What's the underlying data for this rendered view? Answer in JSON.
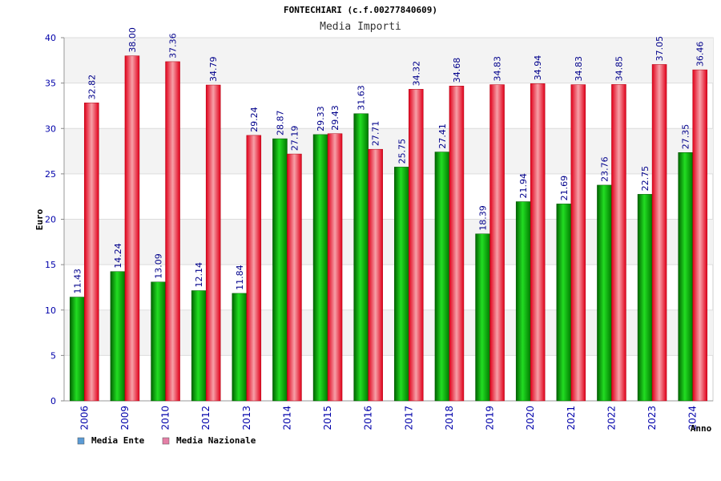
{
  "chart_data": {
    "type": "bar",
    "title": "FONTECHIARI (c.f.00277840609)",
    "subtitle": "Media Importi",
    "xlabel": "Anno",
    "ylabel": "Euro",
    "ylim": [
      0,
      40
    ],
    "yticks": [
      0,
      5,
      10,
      15,
      20,
      25,
      30,
      35,
      40
    ],
    "categories": [
      "2006",
      "2009",
      "2010",
      "2012",
      "2013",
      "2014",
      "2015",
      "2016",
      "2017",
      "2018",
      "2019",
      "2020",
      "2021",
      "2022",
      "2023",
      "2024"
    ],
    "series": [
      {
        "name": "Media Ente",
        "color": "#00aa00",
        "values": [
          11.43,
          14.24,
          13.09,
          12.14,
          11.84,
          28.87,
          29.33,
          31.63,
          25.75,
          27.41,
          18.39,
          21.94,
          21.69,
          23.76,
          22.75,
          27.35
        ],
        "labels": [
          "11.43",
          "14.24",
          "13.09",
          "12.14",
          "11.84",
          "28.87",
          "29.33",
          "31.63",
          "25.75",
          "27.41",
          "18.39",
          "21.94",
          "21.69",
          "23.76",
          "22.75",
          "27.35"
        ]
      },
      {
        "name": "Media Nazionale",
        "color": "#ee1122",
        "values": [
          32.82,
          38.0,
          37.36,
          34.79,
          29.24,
          27.19,
          29.43,
          27.71,
          34.32,
          34.68,
          34.83,
          34.94,
          34.83,
          34.85,
          37.05,
          36.46
        ],
        "labels": [
          "32.82",
          "38.00",
          "37.36",
          "34.79",
          "29.24",
          "27.19",
          "29.43",
          "27.71",
          "34.32",
          "34.68",
          "34.83",
          "34.94",
          "34.83",
          "34.85",
          "37.05",
          "36.46"
        ]
      }
    ],
    "legend": {
      "position": "bottom-left",
      "items": [
        {
          "label": "Media Ente",
          "color": "#5b9bd5"
        },
        {
          "label": "Media Nazionale",
          "color": "#e57fa6"
        }
      ]
    },
    "grid": true
  }
}
